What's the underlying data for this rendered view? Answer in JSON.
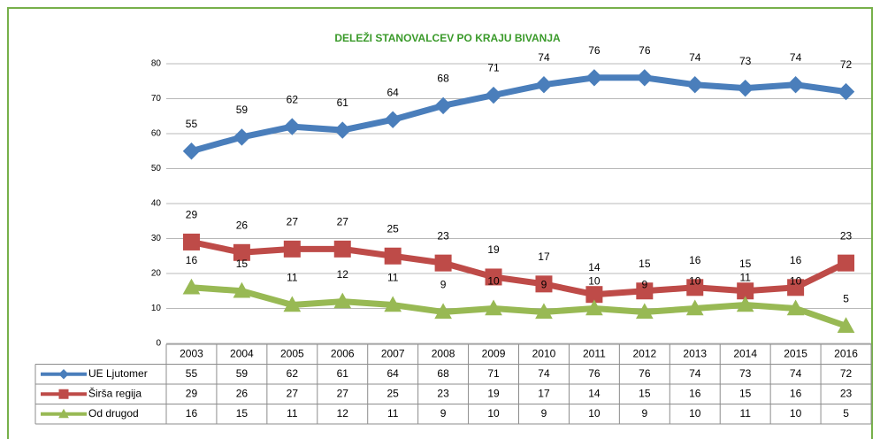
{
  "chart_data": {
    "type": "line",
    "title": "DELEŽI STANOVALCEV PO KRAJU BIVANJA",
    "categories": [
      "2003",
      "2004",
      "2005",
      "2006",
      "2007",
      "2008",
      "2009",
      "2010",
      "2011",
      "2012",
      "2013",
      "2014",
      "2015",
      "2016"
    ],
    "series": [
      {
        "name": "UE Ljutomer",
        "color": "#4a7ebb",
        "marker": "diamond",
        "values": [
          55,
          59,
          62,
          61,
          64,
          68,
          71,
          74,
          76,
          76,
          74,
          73,
          74,
          72
        ]
      },
      {
        "name": "Širša regija",
        "color": "#be4b48",
        "marker": "square",
        "values": [
          29,
          26,
          27,
          27,
          25,
          23,
          19,
          17,
          14,
          15,
          16,
          15,
          16,
          23
        ]
      },
      {
        "name": "Od drugod",
        "color": "#98b954",
        "marker": "triangle",
        "values": [
          16,
          15,
          11,
          12,
          11,
          9,
          10,
          9,
          10,
          9,
          10,
          11,
          10,
          5
        ]
      }
    ],
    "ylim": [
      0,
      80
    ],
    "yticks": [
      0,
      10,
      20,
      30,
      40,
      50,
      60,
      70,
      80
    ],
    "grid": true,
    "data_table": true
  }
}
